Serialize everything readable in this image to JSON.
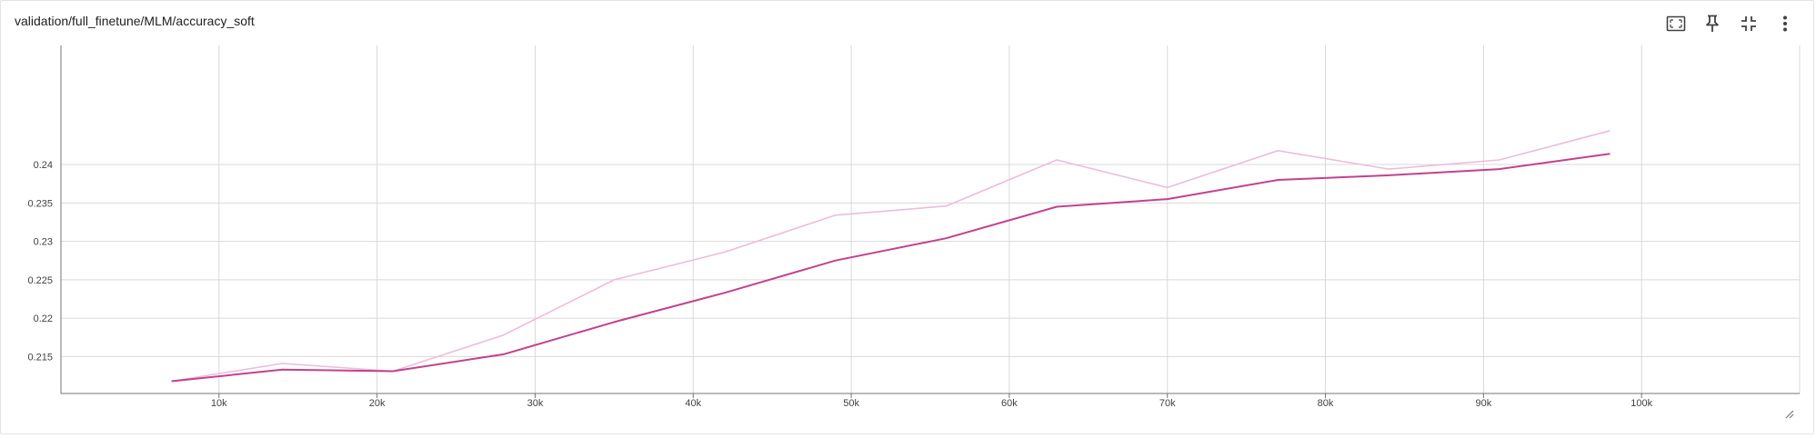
{
  "header": {
    "title": "validation/full_finetune/MLM/accuracy_soft"
  },
  "toolbar": {
    "icons": [
      "fit-domain-icon",
      "pin-icon",
      "collapse-icon",
      "more-vert-icon"
    ]
  },
  "colors": {
    "raw_series": "#ecbcdc",
    "smoothed_series": "#c2428d",
    "grid": "#d9d9d9",
    "axis": "#757575"
  },
  "chart_data": {
    "type": "line",
    "title": "validation/full_finetune/MLM/accuracy_soft",
    "xlabel": "",
    "ylabel": "",
    "xlim": [
      0,
      110000
    ],
    "ylim": [
      0.2102,
      0.2555
    ],
    "grid": true,
    "xticks": [
      10000,
      20000,
      30000,
      40000,
      50000,
      60000,
      70000,
      80000,
      90000,
      100000
    ],
    "xtick_labels": [
      "10k",
      "20k",
      "30k",
      "40k",
      "50k",
      "60k",
      "70k",
      "80k",
      "90k",
      "100k"
    ],
    "yticks": [
      0.215,
      0.22,
      0.225,
      0.23,
      0.235,
      0.24
    ],
    "ytick_labels": [
      "0.215",
      "0.22",
      "0.225",
      "0.23",
      "0.235",
      "0.24"
    ],
    "series": [
      {
        "role": "raw",
        "x": [
          7000,
          14000,
          21000,
          28000,
          35000,
          42000,
          49000,
          56000,
          63000,
          70000,
          77000,
          84000,
          91000,
          98000
        ],
        "y": [
          0.2118,
          0.2141,
          0.2131,
          0.2178,
          0.225,
          0.2286,
          0.2334,
          0.2346,
          0.2406,
          0.237,
          0.2418,
          0.2394,
          0.2406,
          0.2444
        ]
      },
      {
        "role": "smoothed",
        "x": [
          7000,
          14000,
          21000,
          28000,
          35000,
          42000,
          49000,
          56000,
          63000,
          70000,
          77000,
          84000,
          91000,
          98000
        ],
        "y": [
          0.2118,
          0.2133,
          0.2131,
          0.2153,
          0.2195,
          0.2233,
          0.2275,
          0.2304,
          0.2345,
          0.2355,
          0.238,
          0.2386,
          0.2394,
          0.2414
        ]
      }
    ]
  }
}
